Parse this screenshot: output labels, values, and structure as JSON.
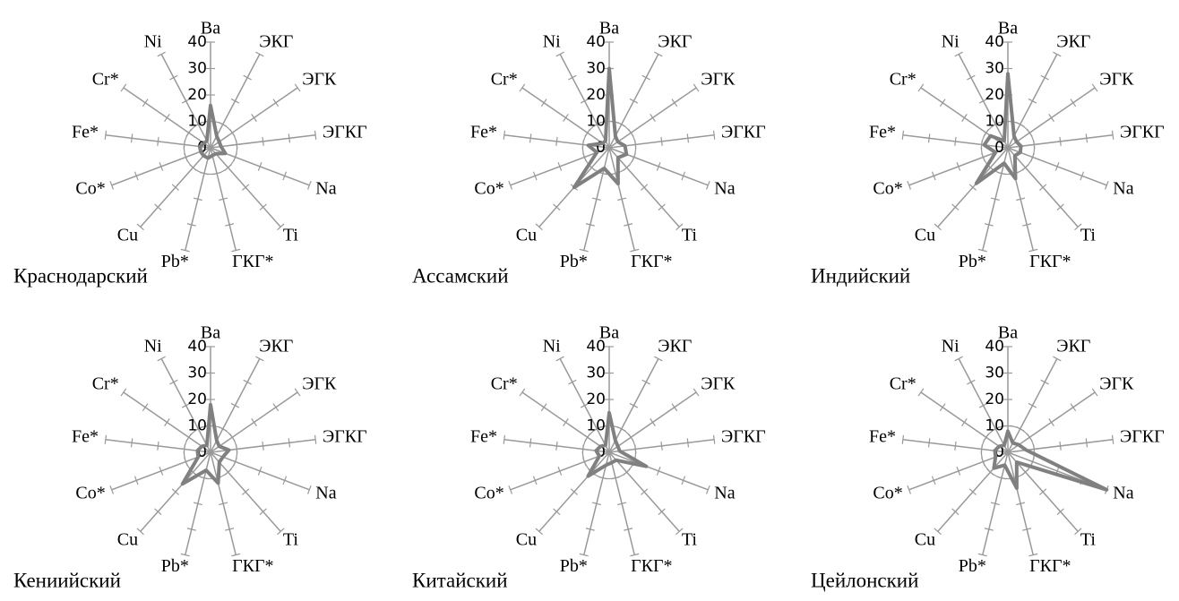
{
  "chart_data": [
    {
      "type": "radar",
      "title": "Краснодарский",
      "categories": [
        "Ba",
        "ЭКГ",
        "ЭГК",
        "ЭГКГ",
        "Na",
        "Ti",
        "ГКГ*",
        "Pb*",
        "Cu",
        "Co*",
        "Fe*",
        "Cr*",
        "Ni"
      ],
      "values": [
        16,
        5,
        4,
        4,
        6,
        3,
        3,
        4,
        4,
        4,
        4,
        3,
        3
      ],
      "color": "#808080",
      "ylim": [
        0,
        40
      ],
      "yticks": [
        0,
        10,
        20,
        30,
        40
      ]
    },
    {
      "type": "radar",
      "title": "Ассамский",
      "categories": [
        "Ba",
        "ЭКГ",
        "ЭГК",
        "ЭГКГ",
        "Na",
        "Ti",
        "ГКГ*",
        "Pb*",
        "Cu",
        "Co*",
        "Fe*",
        "Cr*",
        "Ni"
      ],
      "values": [
        30,
        5,
        4,
        6,
        7,
        5,
        14,
        8,
        20,
        5,
        8,
        3,
        3
      ],
      "color": "#808080",
      "ylim": [
        0,
        40
      ],
      "yticks": [
        0,
        10,
        20,
        30,
        40
      ]
    },
    {
      "type": "radar",
      "title": "Индийский",
      "categories": [
        "Ba",
        "ЭКГ",
        "ЭГК",
        "ЭГКГ",
        "Na",
        "Ti",
        "ГКГ*",
        "Pb*",
        "Cu",
        "Co*",
        "Fe*",
        "Cr*",
        "Ni"
      ],
      "values": [
        28,
        5,
        4,
        5,
        5,
        4,
        12,
        6,
        18,
        5,
        9,
        8,
        3
      ],
      "color": "#808080",
      "ylim": [
        0,
        40
      ],
      "yticks": [
        0,
        10,
        20,
        30,
        40
      ]
    },
    {
      "type": "radar",
      "title": "Кениийский",
      "categories": [
        "Ba",
        "ЭКГ",
        "ЭГК",
        "ЭГКГ",
        "Na",
        "Ti",
        "ГКГ*",
        "Pb*",
        "Cu",
        "Co*",
        "Fe*",
        "Cr*",
        "Ni"
      ],
      "values": [
        18,
        5,
        4,
        7,
        5,
        5,
        12,
        7,
        16,
        5,
        5,
        4,
        3
      ],
      "color": "#808080",
      "ylim": [
        0,
        40
      ],
      "yticks": [
        0,
        10,
        20,
        30,
        40
      ]
    },
    {
      "type": "radar",
      "title": "Китайский",
      "categories": [
        "Ba",
        "ЭКГ",
        "ЭГК",
        "ЭГКГ",
        "Na",
        "Ti",
        "ГКГ*",
        "Pb*",
        "Cu",
        "Co*",
        "Fe*",
        "Cr*",
        "Ni"
      ],
      "values": [
        15,
        5,
        4,
        4,
        15,
        4,
        4,
        5,
        12,
        4,
        5,
        4,
        3
      ],
      "color": "#808080",
      "ylim": [
        0,
        40
      ],
      "yticks": [
        0,
        10,
        20,
        30,
        40
      ]
    },
    {
      "type": "radar",
      "title": "Цейлонский",
      "categories": [
        "Ba",
        "ЭКГ",
        "ЭГК",
        "ЭГКГ",
        "Na",
        "Ti",
        "ГКГ*",
        "Pb*",
        "Cu",
        "Co*",
        "Fe*",
        "Cr*",
        "Ni"
      ],
      "values": [
        8,
        4,
        5,
        7,
        40,
        5,
        14,
        5,
        8,
        5,
        5,
        4,
        3
      ],
      "color": "#808080",
      "ylim": [
        0,
        40
      ],
      "yticks": [
        0,
        10,
        20,
        30,
        40
      ]
    }
  ]
}
